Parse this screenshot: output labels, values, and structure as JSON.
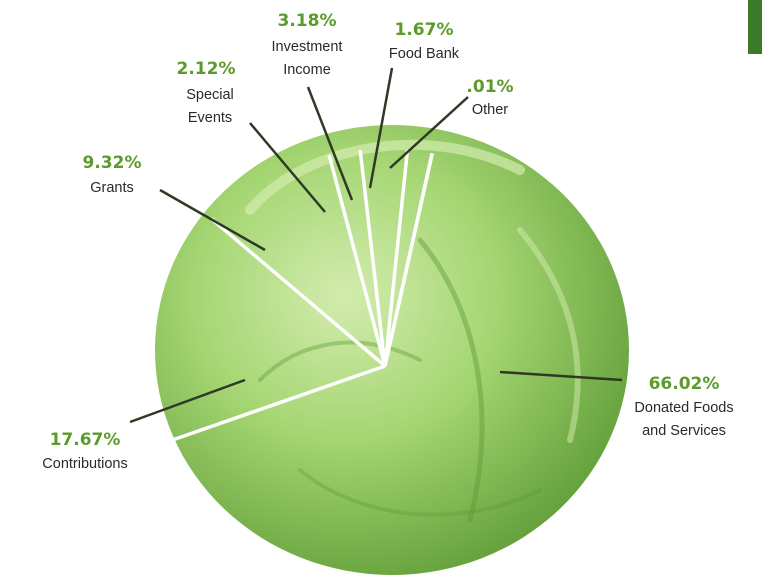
{
  "chart_data": {
    "type": "pie",
    "slices": [
      {
        "value": 66.02,
        "value_label": "66.02%",
        "name_lines": [
          "Donated Foods",
          "and Services"
        ]
      },
      {
        "value": 17.67,
        "value_label": "17.67%",
        "name_lines": [
          "Contributions"
        ]
      },
      {
        "value": 9.32,
        "value_label": "9.32%",
        "name_lines": [
          "Grants"
        ]
      },
      {
        "value": 2.12,
        "value_label": "2.12%",
        "name_lines": [
          "Special",
          "Events"
        ]
      },
      {
        "value": 3.18,
        "value_label": "3.18%",
        "name_lines": [
          "Investment",
          "Income"
        ]
      },
      {
        "value": 1.67,
        "value_label": "1.67%",
        "name_lines": [
          "Food Bank"
        ]
      },
      {
        "value": 0.01,
        "value_label": ".01%",
        "name_lines": [
          "Other"
        ]
      }
    ]
  },
  "colors": {
    "value_label": "#5c9a2a",
    "name_label": "#2a2a2a",
    "divider_lines": "#ffffff",
    "leader_lines": "#2f3a26",
    "cabbage_light": "#d3ecae",
    "cabbage_mid": "#a5d673",
    "cabbage_dark": "#5d9b35",
    "corner_tab": "#3c7a2a"
  },
  "background_image": "cabbage-head"
}
